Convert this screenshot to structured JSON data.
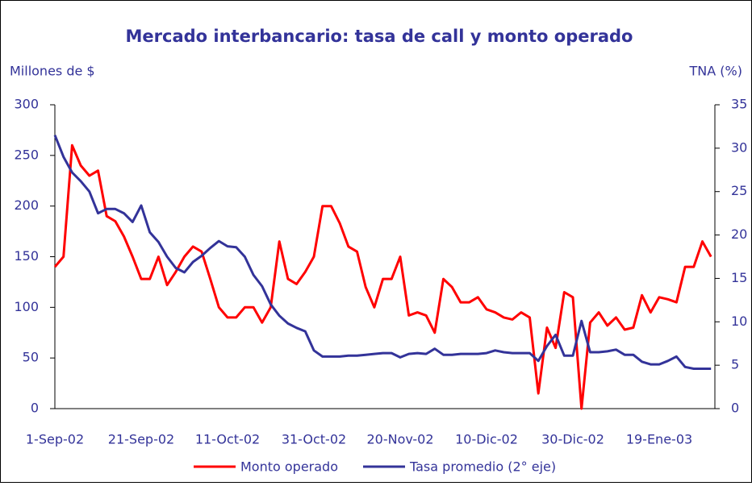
{
  "chart_data": {
    "type": "line",
    "title": "Mercado interbancario: tasa de call y monto operado",
    "y_label": "Millones de $",
    "y2_label": "TNA (%)",
    "categories": [
      "1-Sep-02",
      null,
      null,
      null,
      null,
      null,
      null,
      null,
      null,
      null,
      "21-Sep-02",
      null,
      null,
      null,
      null,
      null,
      null,
      null,
      null,
      null,
      "11-Oct-02",
      null,
      null,
      null,
      null,
      null,
      null,
      null,
      null,
      null,
      "31-Oct-02",
      null,
      null,
      null,
      null,
      null,
      null,
      null,
      null,
      null,
      "20-Nov-02",
      null,
      null,
      null,
      null,
      null,
      null,
      null,
      null,
      null,
      "10-Dic-02",
      null,
      null,
      null,
      null,
      null,
      null,
      null,
      null,
      null,
      "30-Dic-02",
      null,
      null,
      null,
      null,
      null,
      null,
      null,
      null,
      null,
      "19-Ene-03",
      null,
      null,
      null,
      null,
      null,
      null
    ],
    "series": [
      {
        "name": "Monto operado",
        "color": "#ff0000",
        "axis": "y",
        "values": [
          140,
          150,
          260,
          240,
          230,
          235,
          190,
          185,
          170,
          150,
          128,
          128,
          150,
          122,
          135,
          150,
          160,
          155,
          128,
          100,
          90,
          90,
          100,
          100,
          85,
          100,
          165,
          128,
          123,
          135,
          150,
          200,
          200,
          183,
          160,
          155,
          120,
          100,
          128,
          128,
          150,
          92,
          95,
          92,
          75,
          128,
          120,
          105,
          105,
          110,
          98,
          95,
          90,
          88,
          95,
          90,
          15,
          80,
          60,
          115,
          110,
          0,
          85,
          95,
          82,
          90,
          78,
          80,
          112,
          95,
          110,
          108,
          105,
          140,
          140,
          165,
          150
        ]
      },
      {
        "name": "Tasa promedio (2° eje)",
        "color": "#333399",
        "axis": "y2",
        "values": [
          31.5,
          29,
          27.2,
          26.2,
          25,
          22.5,
          23,
          23,
          22.5,
          21.5,
          23.4,
          20.3,
          19.2,
          17.5,
          16.2,
          15.7,
          16.9,
          17.6,
          18.5,
          19.3,
          18.7,
          18.6,
          17.5,
          15.4,
          14.1,
          12,
          10.7,
          9.8,
          9.3,
          8.9,
          6.7,
          6,
          6,
          6,
          6.1,
          6.1,
          6.2,
          6.3,
          6.4,
          6.4,
          5.9,
          6.3,
          6.4,
          6.3,
          6.9,
          6.2,
          6.2,
          6.3,
          6.3,
          6.3,
          6.4,
          6.7,
          6.5,
          6.4,
          6.4,
          6.4,
          5.5,
          7.2,
          8.5,
          6.1,
          6.1,
          10.1,
          6.5,
          6.5,
          6.6,
          6.8,
          6.2,
          6.2,
          5.4,
          5.1,
          5.1,
          5.5,
          6,
          4.8,
          4.6,
          4.6,
          4.6
        ]
      }
    ],
    "ylim": [
      0,
      300
    ],
    "yticks": [
      0,
      50,
      100,
      150,
      200,
      250,
      300
    ],
    "y2lim": [
      0,
      35
    ],
    "y2ticks": [
      0,
      5,
      10,
      15,
      20,
      25,
      30,
      35
    ],
    "legend": "bottom",
    "grid": false
  }
}
